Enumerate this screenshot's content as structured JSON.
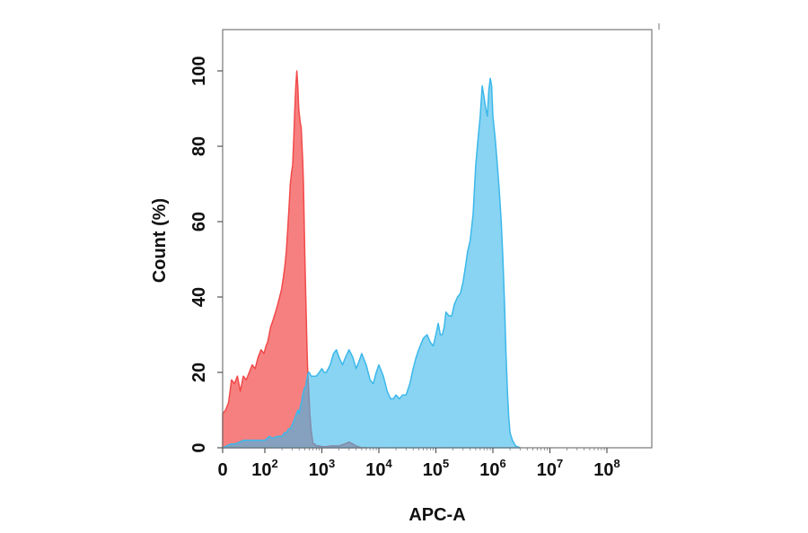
{
  "chart_data": {
    "type": "area",
    "title": "",
    "xlabel": "APC-A",
    "ylabel": "Count  (%)",
    "x_scale": "biexponential",
    "xlim": [
      0,
      100000000
    ],
    "ylim": [
      0,
      110
    ],
    "grid": false,
    "legend": "none",
    "x_ticks": [
      {
        "base": "0",
        "exp": ""
      },
      {
        "base": "10",
        "exp": "2"
      },
      {
        "base": "10",
        "exp": "3"
      },
      {
        "base": "10",
        "exp": "4"
      },
      {
        "base": "10",
        "exp": "5"
      },
      {
        "base": "10",
        "exp": "6"
      },
      {
        "base": "10",
        "exp": "7"
      },
      {
        "base": "10",
        "exp": "8"
      }
    ],
    "y_ticks": [
      "0",
      "20",
      "40",
      "60",
      "80",
      "100"
    ],
    "y_tick_values": [
      0,
      20,
      40,
      60,
      80,
      100
    ],
    "series": [
      {
        "color": "#f24a4a",
        "fill": "rgba(242,74,74,0.7)",
        "points": [
          [
            0,
            9
          ],
          [
            7,
            10
          ],
          [
            14,
            12
          ],
          [
            21,
            18
          ],
          [
            28,
            17
          ],
          [
            35,
            19
          ],
          [
            42,
            15
          ],
          [
            49,
            19
          ],
          [
            56,
            18
          ],
          [
            63,
            20
          ],
          [
            70,
            22
          ],
          [
            77,
            21
          ],
          [
            84,
            24
          ],
          [
            91,
            26
          ],
          [
            98,
            25
          ],
          [
            105,
            27
          ],
          [
            112,
            28
          ],
          [
            119,
            30
          ],
          [
            126,
            32
          ],
          [
            140,
            34
          ],
          [
            154,
            36
          ],
          [
            168,
            38
          ],
          [
            182,
            40
          ],
          [
            196,
            42
          ],
          [
            210,
            45
          ],
          [
            224,
            48
          ],
          [
            238,
            52
          ],
          [
            252,
            58
          ],
          [
            266,
            64
          ],
          [
            280,
            70
          ],
          [
            294,
            73
          ],
          [
            308,
            75
          ],
          [
            322,
            82
          ],
          [
            336,
            90
          ],
          [
            350,
            96
          ],
          [
            364,
            100
          ],
          [
            378,
            96
          ],
          [
            392,
            90
          ],
          [
            406,
            88
          ],
          [
            420,
            86
          ],
          [
            434,
            85
          ],
          [
            448,
            80
          ],
          [
            462,
            76
          ],
          [
            476,
            70
          ],
          [
            490,
            60
          ],
          [
            504,
            50
          ],
          [
            518,
            42
          ],
          [
            532,
            35
          ],
          [
            546,
            28
          ],
          [
            560,
            22
          ],
          [
            574,
            18
          ],
          [
            588,
            15
          ],
          [
            602,
            12
          ],
          [
            616,
            9
          ],
          [
            630,
            7
          ],
          [
            644,
            5
          ],
          [
            658,
            4
          ],
          [
            672,
            3
          ],
          [
            686,
            2
          ],
          [
            700,
            1
          ],
          [
            750,
            1
          ],
          [
            800,
            0.5
          ],
          [
            900,
            0.5
          ],
          [
            1000,
            0.3
          ],
          [
            1200,
            0.3
          ],
          [
            1500,
            0.5
          ],
          [
            2000,
            0.5
          ],
          [
            2500,
            1
          ],
          [
            3000,
            1.5
          ],
          [
            3500,
            1
          ],
          [
            4000,
            0.5
          ],
          [
            5000,
            0
          ],
          [
            6000,
            0
          ]
        ]
      },
      {
        "color": "#3bb8ea",
        "fill": "rgba(59,184,234,0.6)",
        "points": [
          [
            0,
            0
          ],
          [
            10,
            0.5
          ],
          [
            20,
            1
          ],
          [
            30,
            1
          ],
          [
            40,
            1.5
          ],
          [
            50,
            2
          ],
          [
            60,
            2
          ],
          [
            80,
            2
          ],
          [
            100,
            2
          ],
          [
            120,
            3
          ],
          [
            140,
            2.5
          ],
          [
            160,
            3
          ],
          [
            180,
            3
          ],
          [
            200,
            3
          ],
          [
            220,
            4
          ],
          [
            240,
            4
          ],
          [
            260,
            5
          ],
          [
            280,
            5
          ],
          [
            300,
            6
          ],
          [
            320,
            7
          ],
          [
            340,
            8
          ],
          [
            360,
            9
          ],
          [
            380,
            10
          ],
          [
            400,
            9
          ],
          [
            420,
            11
          ],
          [
            440,
            12
          ],
          [
            460,
            14
          ],
          [
            480,
            15
          ],
          [
            500,
            16
          ],
          [
            520,
            16
          ],
          [
            540,
            18
          ],
          [
            560,
            19
          ],
          [
            580,
            20
          ],
          [
            600,
            20
          ],
          [
            650,
            19
          ],
          [
            700,
            19
          ],
          [
            800,
            19
          ],
          [
            900,
            20
          ],
          [
            1000,
            21
          ],
          [
            1100,
            20
          ],
          [
            1200,
            20
          ],
          [
            1400,
            22
          ],
          [
            1600,
            25
          ],
          [
            1800,
            26
          ],
          [
            2000,
            24
          ],
          [
            2300,
            22
          ],
          [
            2600,
            24
          ],
          [
            3000,
            26
          ],
          [
            3500,
            24
          ],
          [
            4000,
            21
          ],
          [
            4500,
            23
          ],
          [
            5000,
            25
          ],
          [
            6000,
            22
          ],
          [
            7000,
            18
          ],
          [
            8000,
            17
          ],
          [
            9000,
            20
          ],
          [
            10000,
            22
          ],
          [
            12000,
            19
          ],
          [
            14000,
            15
          ],
          [
            16000,
            13
          ],
          [
            18000,
            13
          ],
          [
            20000,
            14
          ],
          [
            23000,
            13
          ],
          [
            26000,
            14
          ],
          [
            30000,
            14
          ],
          [
            35000,
            17
          ],
          [
            40000,
            21
          ],
          [
            45000,
            24
          ],
          [
            50000,
            26
          ],
          [
            60000,
            29
          ],
          [
            70000,
            30
          ],
          [
            80000,
            28
          ],
          [
            90000,
            27
          ],
          [
            100000,
            30
          ],
          [
            110000,
            33
          ],
          [
            120000,
            30
          ],
          [
            130000,
            30
          ],
          [
            140000,
            32
          ],
          [
            150000,
            36
          ],
          [
            170000,
            35
          ],
          [
            190000,
            35
          ],
          [
            210000,
            38
          ],
          [
            240000,
            40
          ],
          [
            270000,
            41
          ],
          [
            300000,
            44
          ],
          [
            330000,
            48
          ],
          [
            360000,
            52
          ],
          [
            400000,
            55
          ],
          [
            450000,
            62
          ],
          [
            500000,
            75
          ],
          [
            550000,
            82
          ],
          [
            600000,
            88
          ],
          [
            650000,
            96
          ],
          [
            700000,
            93
          ],
          [
            750000,
            90
          ],
          [
            800000,
            88
          ],
          [
            850000,
            95
          ],
          [
            900000,
            98
          ],
          [
            950000,
            96
          ],
          [
            1000000,
            88
          ],
          [
            1100000,
            82
          ],
          [
            1200000,
            75
          ],
          [
            1300000,
            68
          ],
          [
            1400000,
            60
          ],
          [
            1500000,
            50
          ],
          [
            1600000,
            38
          ],
          [
            1700000,
            25
          ],
          [
            1800000,
            15
          ],
          [
            1900000,
            8
          ],
          [
            2000000,
            4
          ],
          [
            2200000,
            2
          ],
          [
            2500000,
            0.5
          ],
          [
            3000000,
            0
          ]
        ]
      }
    ]
  }
}
